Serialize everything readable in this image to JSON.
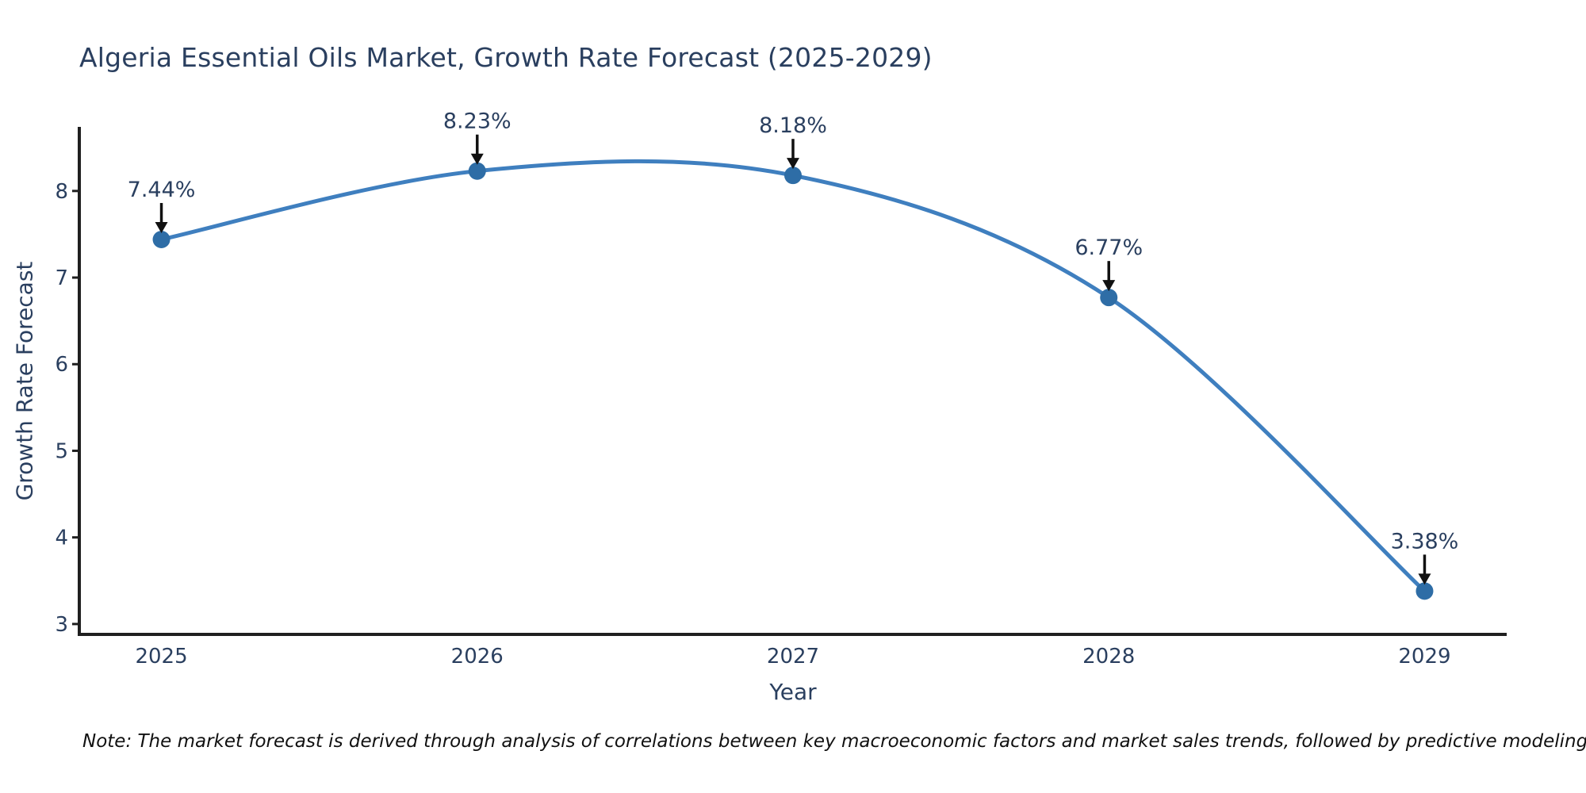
{
  "chart_data": {
    "type": "line",
    "title": "Algeria Essential Oils Market, Growth Rate Forecast (2025-2029)",
    "xlabel": "Year",
    "ylabel": "Growth Rate Forecast",
    "x": [
      2025,
      2026,
      2027,
      2028,
      2029
    ],
    "values": [
      7.44,
      8.23,
      8.18,
      6.77,
      3.38
    ],
    "point_labels": [
      "7.44%",
      "8.23%",
      "8.18%",
      "6.77%",
      "3.38%"
    ],
    "xticks": [
      "2025",
      "2026",
      "2027",
      "2028",
      "2029"
    ],
    "yticks": [
      3,
      4,
      5,
      6,
      7,
      8
    ],
    "xlim": [
      2024.74,
      2029.26
    ],
    "ylim": [
      2.88,
      8.74
    ],
    "grid": false,
    "legend": "none",
    "line_shape": "spline",
    "annotation_arrows": true,
    "note": "Note: The market forecast is derived through analysis of correlations between key macroeconomic factors and market sales trends, followed by predictive modeling to project future sales.",
    "colors": {
      "line": "#3f7fbf",
      "marker": "#2e6da6",
      "arrow": "#111111",
      "axis": "#1f1f1f",
      "text": "#2a3f5f"
    }
  }
}
